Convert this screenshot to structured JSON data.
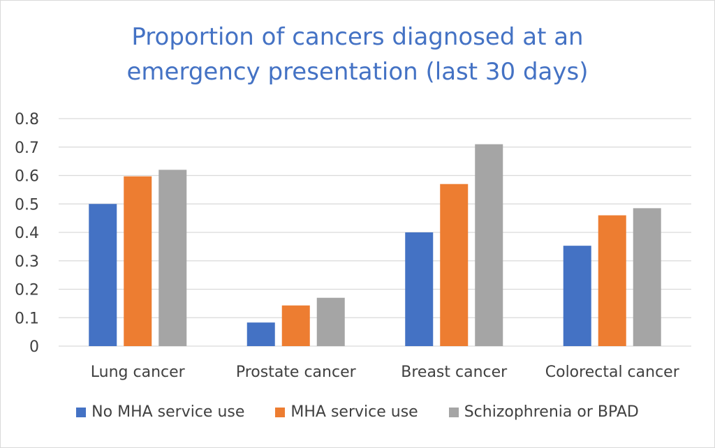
{
  "chart_data": {
    "type": "bar",
    "title_line1": "Proportion of cancers diagnosed at an",
    "title_line2": "emergency presentation (last 30 days)",
    "categories": [
      "Lung cancer",
      "Prostate cancer",
      "Breast cancer",
      "Colorectal cancer"
    ],
    "series": [
      {
        "name": "No MHA service use",
        "color": "#4472c4",
        "values": [
          0.5,
          0.083,
          0.4,
          0.353
        ]
      },
      {
        "name": "MHA service use",
        "color": "#ed7d31",
        "values": [
          0.597,
          0.143,
          0.57,
          0.46
        ]
      },
      {
        "name": "Schizophrenia or BPAD",
        "color": "#a5a5a5",
        "values": [
          0.62,
          0.17,
          0.71,
          0.485
        ]
      }
    ],
    "y_ticks": [
      "0",
      "0.1",
      "0.2",
      "0.3",
      "0.4",
      "0.5",
      "0.6",
      "0.7",
      "0.8"
    ],
    "ylim": [
      0,
      0.8
    ],
    "grid": true,
    "legend_position": "bottom"
  }
}
